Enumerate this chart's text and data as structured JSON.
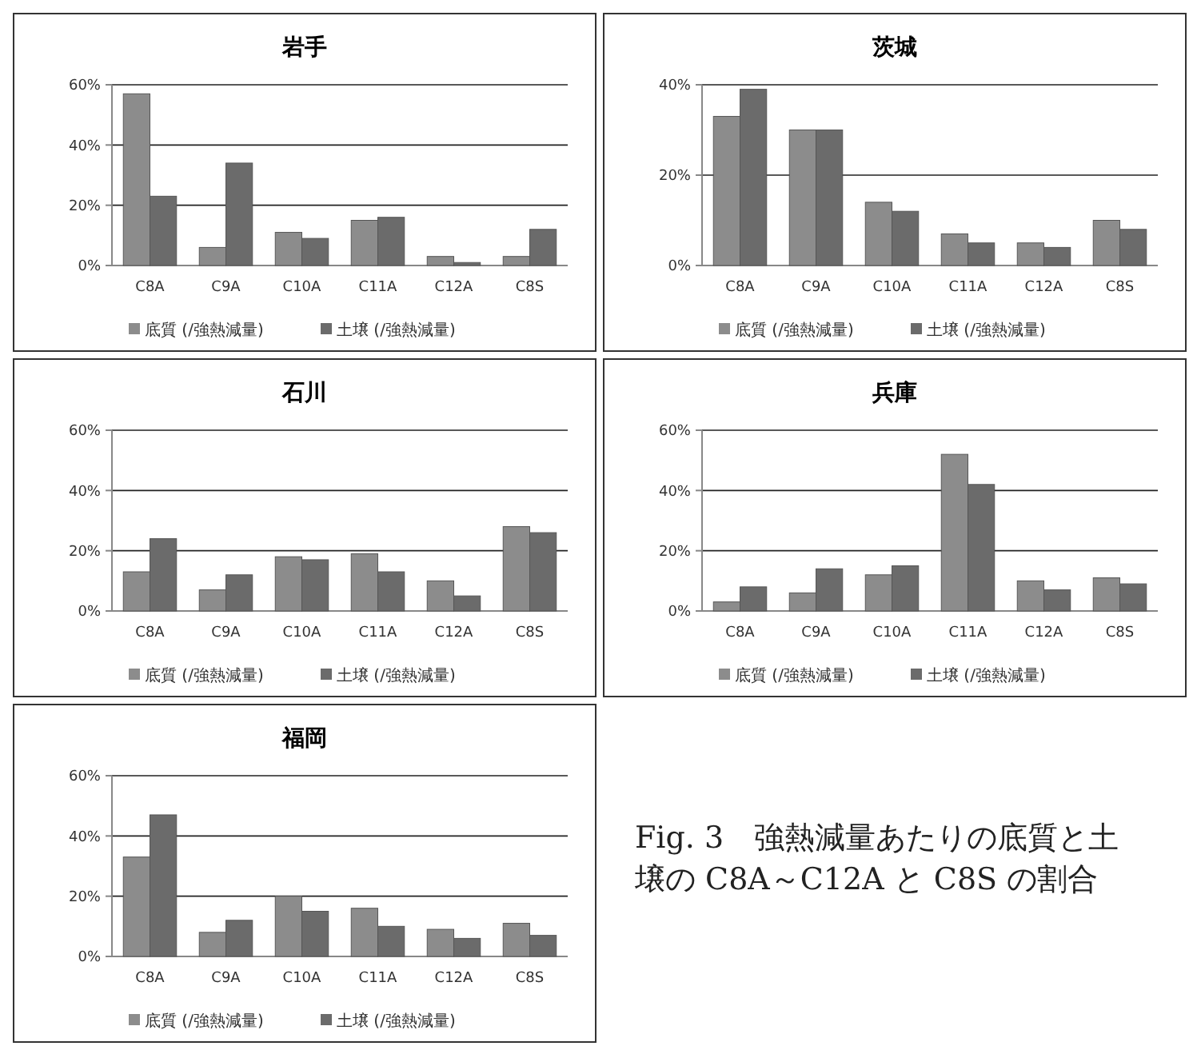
{
  "chart_data": [
    {
      "type": "bar",
      "title": "岩手",
      "categories": [
        "C8A",
        "C9A",
        "C10A",
        "C11A",
        "C12A",
        "C8S"
      ],
      "ylim": [
        0,
        60
      ],
      "yticks": [
        {
          "value": 0,
          "label": "0%"
        },
        {
          "value": 20,
          "label": "20%"
        },
        {
          "value": 40,
          "label": "40%"
        },
        {
          "value": 60,
          "label": "60%"
        }
      ],
      "grid": "y",
      "legend": "bottom",
      "series": [
        {
          "name": "底質 (/強熱減量)",
          "color": "#8c8c8c",
          "values": [
            57,
            6,
            11,
            15,
            3,
            3
          ]
        },
        {
          "name": "土壌 (/強熱減量)",
          "color": "#6b6b6b",
          "values": [
            23,
            34,
            9,
            16,
            1,
            12
          ]
        }
      ]
    },
    {
      "type": "bar",
      "title": "茨城",
      "categories": [
        "C8A",
        "C9A",
        "C10A",
        "C11A",
        "C12A",
        "C8S"
      ],
      "ylim": [
        0,
        40
      ],
      "yticks": [
        {
          "value": 0,
          "label": "0%"
        },
        {
          "value": 20,
          "label": "20%"
        },
        {
          "value": 40,
          "label": "40%"
        }
      ],
      "grid": "y",
      "legend": "bottom",
      "series": [
        {
          "name": "底質 (/強熱減量)",
          "color": "#8c8c8c",
          "values": [
            33,
            30,
            14,
            7,
            5,
            10
          ]
        },
        {
          "name": "土壌 (/強熱減量)",
          "color": "#6b6b6b",
          "values": [
            39,
            30,
            12,
            5,
            4,
            8
          ]
        }
      ]
    },
    {
      "type": "bar",
      "title": "石川",
      "categories": [
        "C8A",
        "C9A",
        "C10A",
        "C11A",
        "C12A",
        "C8S"
      ],
      "ylim": [
        0,
        60
      ],
      "yticks": [
        {
          "value": 0,
          "label": "0%"
        },
        {
          "value": 20,
          "label": "20%"
        },
        {
          "value": 40,
          "label": "40%"
        },
        {
          "value": 60,
          "label": "60%"
        }
      ],
      "grid": "y",
      "legend": "bottom",
      "series": [
        {
          "name": "底質 (/強熱減量)",
          "color": "#8c8c8c",
          "values": [
            13,
            7,
            18,
            19,
            10,
            28
          ]
        },
        {
          "name": "土壌 (/強熱減量)",
          "color": "#6b6b6b",
          "values": [
            24,
            12,
            17,
            13,
            5,
            26
          ]
        }
      ]
    },
    {
      "type": "bar",
      "title": "兵庫",
      "categories": [
        "C8A",
        "C9A",
        "C10A",
        "C11A",
        "C12A",
        "C8S"
      ],
      "ylim": [
        0,
        60
      ],
      "yticks": [
        {
          "value": 0,
          "label": "0%"
        },
        {
          "value": 20,
          "label": "20%"
        },
        {
          "value": 40,
          "label": "40%"
        },
        {
          "value": 60,
          "label": "60%"
        }
      ],
      "grid": "y",
      "legend": "bottom",
      "series": [
        {
          "name": "底質 (/強熱減量)",
          "color": "#8c8c8c",
          "values": [
            3,
            6,
            12,
            52,
            10,
            11
          ]
        },
        {
          "name": "土壌 (/強熱減量)",
          "color": "#6b6b6b",
          "values": [
            8,
            14,
            15,
            42,
            7,
            9
          ]
        }
      ]
    },
    {
      "type": "bar",
      "title": "福岡",
      "categories": [
        "C8A",
        "C9A",
        "C10A",
        "C11A",
        "C12A",
        "C8S"
      ],
      "ylim": [
        0,
        60
      ],
      "yticks": [
        {
          "value": 0,
          "label": "0%"
        },
        {
          "value": 20,
          "label": "20%"
        },
        {
          "value": 40,
          "label": "40%"
        },
        {
          "value": 60,
          "label": "60%"
        }
      ],
      "grid": "y",
      "legend": "bottom",
      "annotations": [
        "Fig. 3　強熱減量あたりの底質と土壌の C8A～C12A と C8S の割合"
      ],
      "series": [
        {
          "name": "底質 (/強熱減量)",
          "color": "#8c8c8c",
          "values": [
            33,
            8,
            20,
            16,
            9,
            11
          ]
        },
        {
          "name": "土壌 (/強熱減量)",
          "color": "#6b6b6b",
          "values": [
            47,
            12,
            15,
            10,
            6,
            7
          ]
        }
      ]
    }
  ]
}
